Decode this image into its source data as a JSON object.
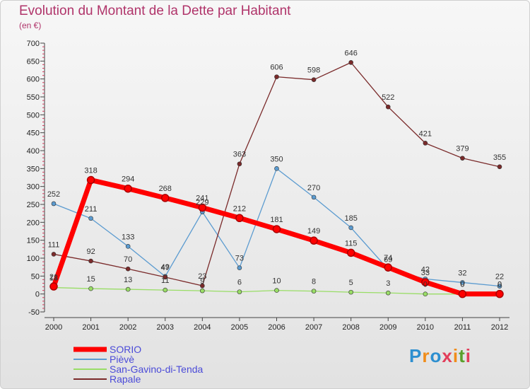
{
  "title": "Evolution du Montant de la Dette par Habitant",
  "subtitle": "(en €)",
  "logo": {
    "letters": [
      "P",
      "r",
      "o",
      "x",
      "i",
      "t",
      "i"
    ],
    "colors": [
      "#2d8fd0",
      "#f08c1a",
      "#2d8fd0",
      "#e23d5a",
      "#f08c1a",
      "#5aa02c",
      "#e23d5a"
    ]
  },
  "chart_data": {
    "type": "line",
    "title": "Evolution du Montant de la Dette par Habitant",
    "subtitle": "(en €)",
    "xlabel": "",
    "ylabel": "",
    "categories": [
      "2000",
      "2001",
      "2002",
      "2003",
      "2004",
      "2005",
      "2006",
      "2007",
      "2008",
      "2009",
      "2010",
      "2011",
      "2012"
    ],
    "ylim": [
      -50,
      700
    ],
    "yticks": [
      "-50",
      "0",
      "50",
      "100",
      "150",
      "200",
      "250",
      "300",
      "350",
      "400",
      "450",
      "500",
      "550",
      "600",
      "650",
      "700"
    ],
    "grid": false,
    "legend_position": "bottom-left",
    "series": [
      {
        "name": "SORIO",
        "color": "#ff0000",
        "values": [
          21,
          318,
          294,
          268,
          241,
          212,
          181,
          149,
          115,
          74,
          33,
          0,
          0
        ],
        "labels": [
          "21",
          "318",
          "294",
          "268",
          "241",
          "212",
          "181",
          "149",
          "115",
          "74",
          "33",
          "0",
          "0"
        ]
      },
      {
        "name": "Pièvè",
        "color": "#5b9bd0",
        "values": [
          252,
          211,
          133,
          49,
          229,
          73,
          350,
          270,
          185,
          69,
          42,
          32,
          22
        ],
        "labels": [
          "252",
          "211",
          "133",
          "49",
          "229",
          "73",
          "350",
          "270",
          "185",
          "69",
          "42",
          "32",
          "22"
        ]
      },
      {
        "name": "San-Gavino-di-Tenda",
        "color": "#99dd66",
        "values": [
          18,
          15,
          13,
          11,
          9,
          6,
          10,
          8,
          5,
          3,
          0,
          0,
          0
        ],
        "labels": [
          "18",
          "15",
          "13",
          "11",
          "9",
          "6",
          "10",
          "8",
          "5",
          "3",
          "0",
          "0",
          "0"
        ]
      },
      {
        "name": "Rapale",
        "color": "#7a2a2a",
        "values": [
          111,
          92,
          70,
          47,
          23,
          363,
          606,
          598,
          646,
          522,
          421,
          379,
          355
        ],
        "labels": [
          "111",
          "92",
          "70",
          "47",
          "23",
          "363",
          "606",
          "598",
          "646",
          "522",
          "421",
          "379",
          "355"
        ]
      }
    ]
  }
}
